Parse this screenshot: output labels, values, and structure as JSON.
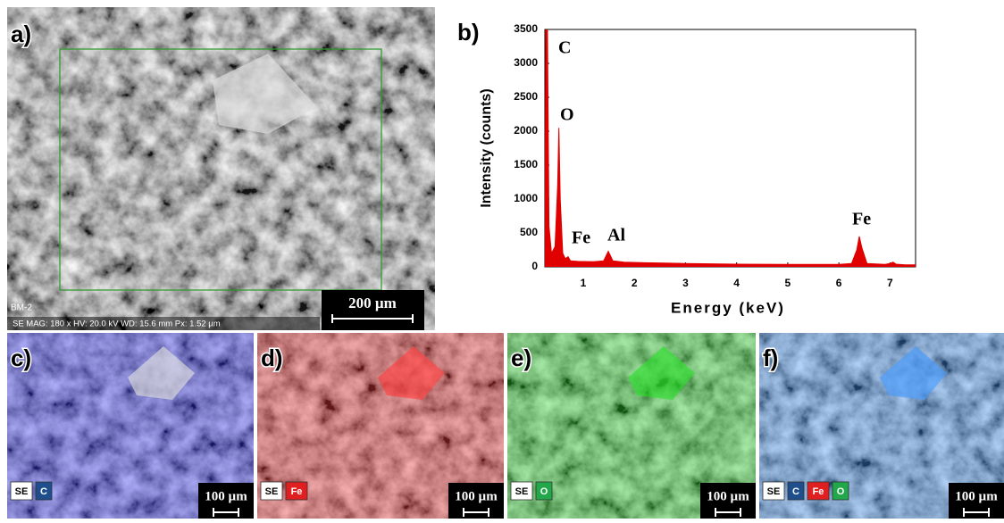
{
  "panel_a": {
    "label": "a)",
    "sample": "BM-2",
    "info": "SE  MAG: 180 x  HV: 20.0 kV  WD: 15.6 mm  Px: 1.52 µm",
    "scale_bar": "200 µm"
  },
  "chart_data": {
    "type": "line",
    "label": "b)",
    "x_label": "Energy (keV)",
    "y_label": "Intensity (counts)",
    "x": [
      0.25,
      0.27,
      0.3,
      0.33,
      0.38,
      0.45,
      0.5,
      0.525,
      0.55,
      0.6,
      0.65,
      0.705,
      0.75,
      0.9,
      1.2,
      1.4,
      1.49,
      1.58,
      1.8,
      2.2,
      2.6,
      3.0,
      3.5,
      4.0,
      4.5,
      5.0,
      5.5,
      6.0,
      6.25,
      6.35,
      6.4,
      6.45,
      6.55,
      6.9,
      7.0,
      7.06,
      7.12,
      7.3,
      7.5
    ],
    "values": [
      100,
      3500,
      3500,
      600,
      200,
      300,
      1200,
      2050,
      1000,
      200,
      120,
      150,
      90,
      80,
      75,
      90,
      230,
      90,
      70,
      60,
      55,
      50,
      45,
      40,
      38,
      35,
      35,
      35,
      50,
      250,
      450,
      280,
      50,
      35,
      50,
      70,
      40,
      30,
      30
    ],
    "color": "#e00000",
    "xlim": [
      0.25,
      7.5
    ],
    "xticks": [
      1,
      2,
      3,
      4,
      5,
      6,
      7
    ],
    "ylim": [
      0,
      3500
    ],
    "yticks": [
      0,
      500,
      1000,
      1500,
      2000,
      2500,
      3000,
      3500
    ],
    "annotations": [
      "C",
      "O",
      "Fe",
      "Al",
      "Fe"
    ]
  },
  "maps": [
    {
      "label": "c)",
      "overlay": "#3a3aff",
      "elements": [
        {
          "text": "SE",
          "color": "#ffffff"
        },
        {
          "text": "C",
          "color": "#1f4e8c"
        }
      ],
      "scale_bar": "100 µm"
    },
    {
      "label": "d)",
      "overlay": "#ff4040",
      "elements": [
        {
          "text": "SE",
          "color": "#ffffff"
        },
        {
          "text": "Fe",
          "color": "#e02020"
        }
      ],
      "scale_bar": "100 µm"
    },
    {
      "label": "e)",
      "overlay": "#30e030",
      "elements": [
        {
          "text": "SE",
          "color": "#ffffff"
        },
        {
          "text": "O",
          "color": "#22a84a"
        }
      ],
      "scale_bar": "100 µm"
    },
    {
      "label": "f)",
      "overlay": "#4a9cff",
      "elements": [
        {
          "text": "SE",
          "color": "#ffffff"
        },
        {
          "text": "C",
          "color": "#1f4e8c"
        },
        {
          "text": "Fe",
          "color": "#e02020"
        },
        {
          "text": "O",
          "color": "#22a84a"
        }
      ],
      "scale_bar": "100 µm"
    }
  ]
}
